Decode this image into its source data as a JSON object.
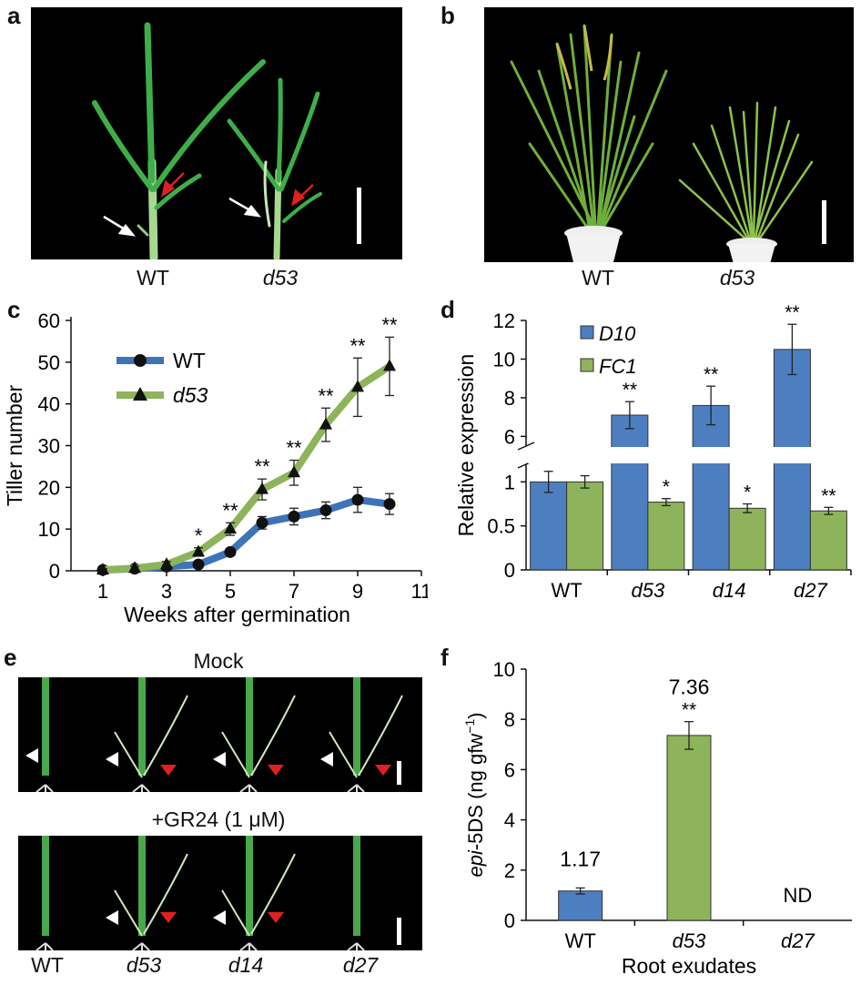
{
  "panels": {
    "a": {
      "letter": "a",
      "labels": [
        "WT",
        "d53"
      ]
    },
    "b": {
      "letter": "b",
      "labels": [
        "WT",
        "d53"
      ]
    },
    "c": {
      "letter": "c"
    },
    "d": {
      "letter": "d"
    },
    "e": {
      "letter": "e",
      "top_title": "Mock",
      "bottom_title": "+GR24 (1 μM)",
      "labels": [
        "WT",
        "d53",
        "d14",
        "d27"
      ]
    },
    "f": {
      "letter": "f"
    }
  },
  "chart_data": [
    {
      "id": "c",
      "type": "line",
      "xlabel": "Weeks after germination",
      "ylabel": "Tiller number",
      "xlim": [
        0,
        11
      ],
      "ylim": [
        0,
        60
      ],
      "xticks": [
        1,
        3,
        5,
        7,
        9,
        11
      ],
      "yticks": [
        0,
        10,
        20,
        30,
        40,
        50,
        60
      ],
      "legend_position": "top-left",
      "x": [
        1,
        2,
        3,
        4,
        5,
        6,
        7,
        8,
        9,
        10
      ],
      "series": [
        {
          "name": "WT",
          "color": "#3d74b7",
          "marker": "circle",
          "values": [
            0.2,
            0.5,
            1,
            1.5,
            4.5,
            11.5,
            13,
            14.5,
            17,
            16
          ],
          "errors": [
            0.3,
            0.4,
            0.5,
            0.5,
            0.8,
            1.5,
            2,
            2,
            3,
            2.5
          ]
        },
        {
          "name": "d53",
          "color": "#8db45a",
          "marker": "triangle",
          "values": [
            0.2,
            0.6,
            1.5,
            4.5,
            10,
            19.5,
            23.5,
            35,
            44,
            49
          ],
          "errors": [
            0.3,
            0.5,
            0.7,
            1,
            1.5,
            2.5,
            3,
            4,
            7,
            7
          ]
        }
      ],
      "significance": [
        {
          "x": 4,
          "label": "*"
        },
        {
          "x": 5,
          "label": "**"
        },
        {
          "x": 6,
          "label": "**"
        },
        {
          "x": 7,
          "label": "**"
        },
        {
          "x": 8,
          "label": "**"
        },
        {
          "x": 9,
          "label": "**"
        },
        {
          "x": 10,
          "label": "**"
        }
      ]
    },
    {
      "id": "d",
      "type": "bar",
      "ylabel": "Relative expression",
      "categories": [
        "WT",
        "d53",
        "d14",
        "d27"
      ],
      "yticks_lower": [
        "0",
        "0.5",
        "1"
      ],
      "yticks_upper": [
        "6",
        "8",
        "10",
        "12"
      ],
      "axis_break": true,
      "series": [
        {
          "name": "D10",
          "color": "#4d7fc0",
          "values": [
            1,
            7.1,
            7.6,
            10.5
          ],
          "errors": [
            0.12,
            0.7,
            1.0,
            1.3
          ],
          "stars": [
            "",
            "**",
            "**",
            "**"
          ]
        },
        {
          "name": "FC1",
          "color": "#8db45a",
          "values": [
            1,
            0.77,
            0.7,
            0.67
          ],
          "errors": [
            0.07,
            0.04,
            0.05,
            0.04
          ],
          "stars": [
            "",
            "*",
            "*",
            "**"
          ]
        }
      ]
    },
    {
      "id": "f",
      "type": "bar",
      "xlabel": "Root exudates",
      "ylabel_prefix": "epi",
      "ylabel_rest": "-5DS (ng gfw",
      "ylabel_sup": "−1",
      "ylabel_close": ")",
      "ylim": [
        0,
        10
      ],
      "yticks": [
        0,
        2,
        4,
        6,
        8,
        10
      ],
      "categories": [
        "WT",
        "d53",
        "d27"
      ],
      "values": [
        1.17,
        7.36,
        null
      ],
      "errors": [
        0.12,
        0.55,
        0
      ],
      "value_labels": [
        "1.17",
        "7.36",
        "ND"
      ],
      "stars": [
        "",
        "**",
        ""
      ],
      "colors": [
        "#4d7fc0",
        "#8db45a",
        "#000000"
      ]
    }
  ]
}
